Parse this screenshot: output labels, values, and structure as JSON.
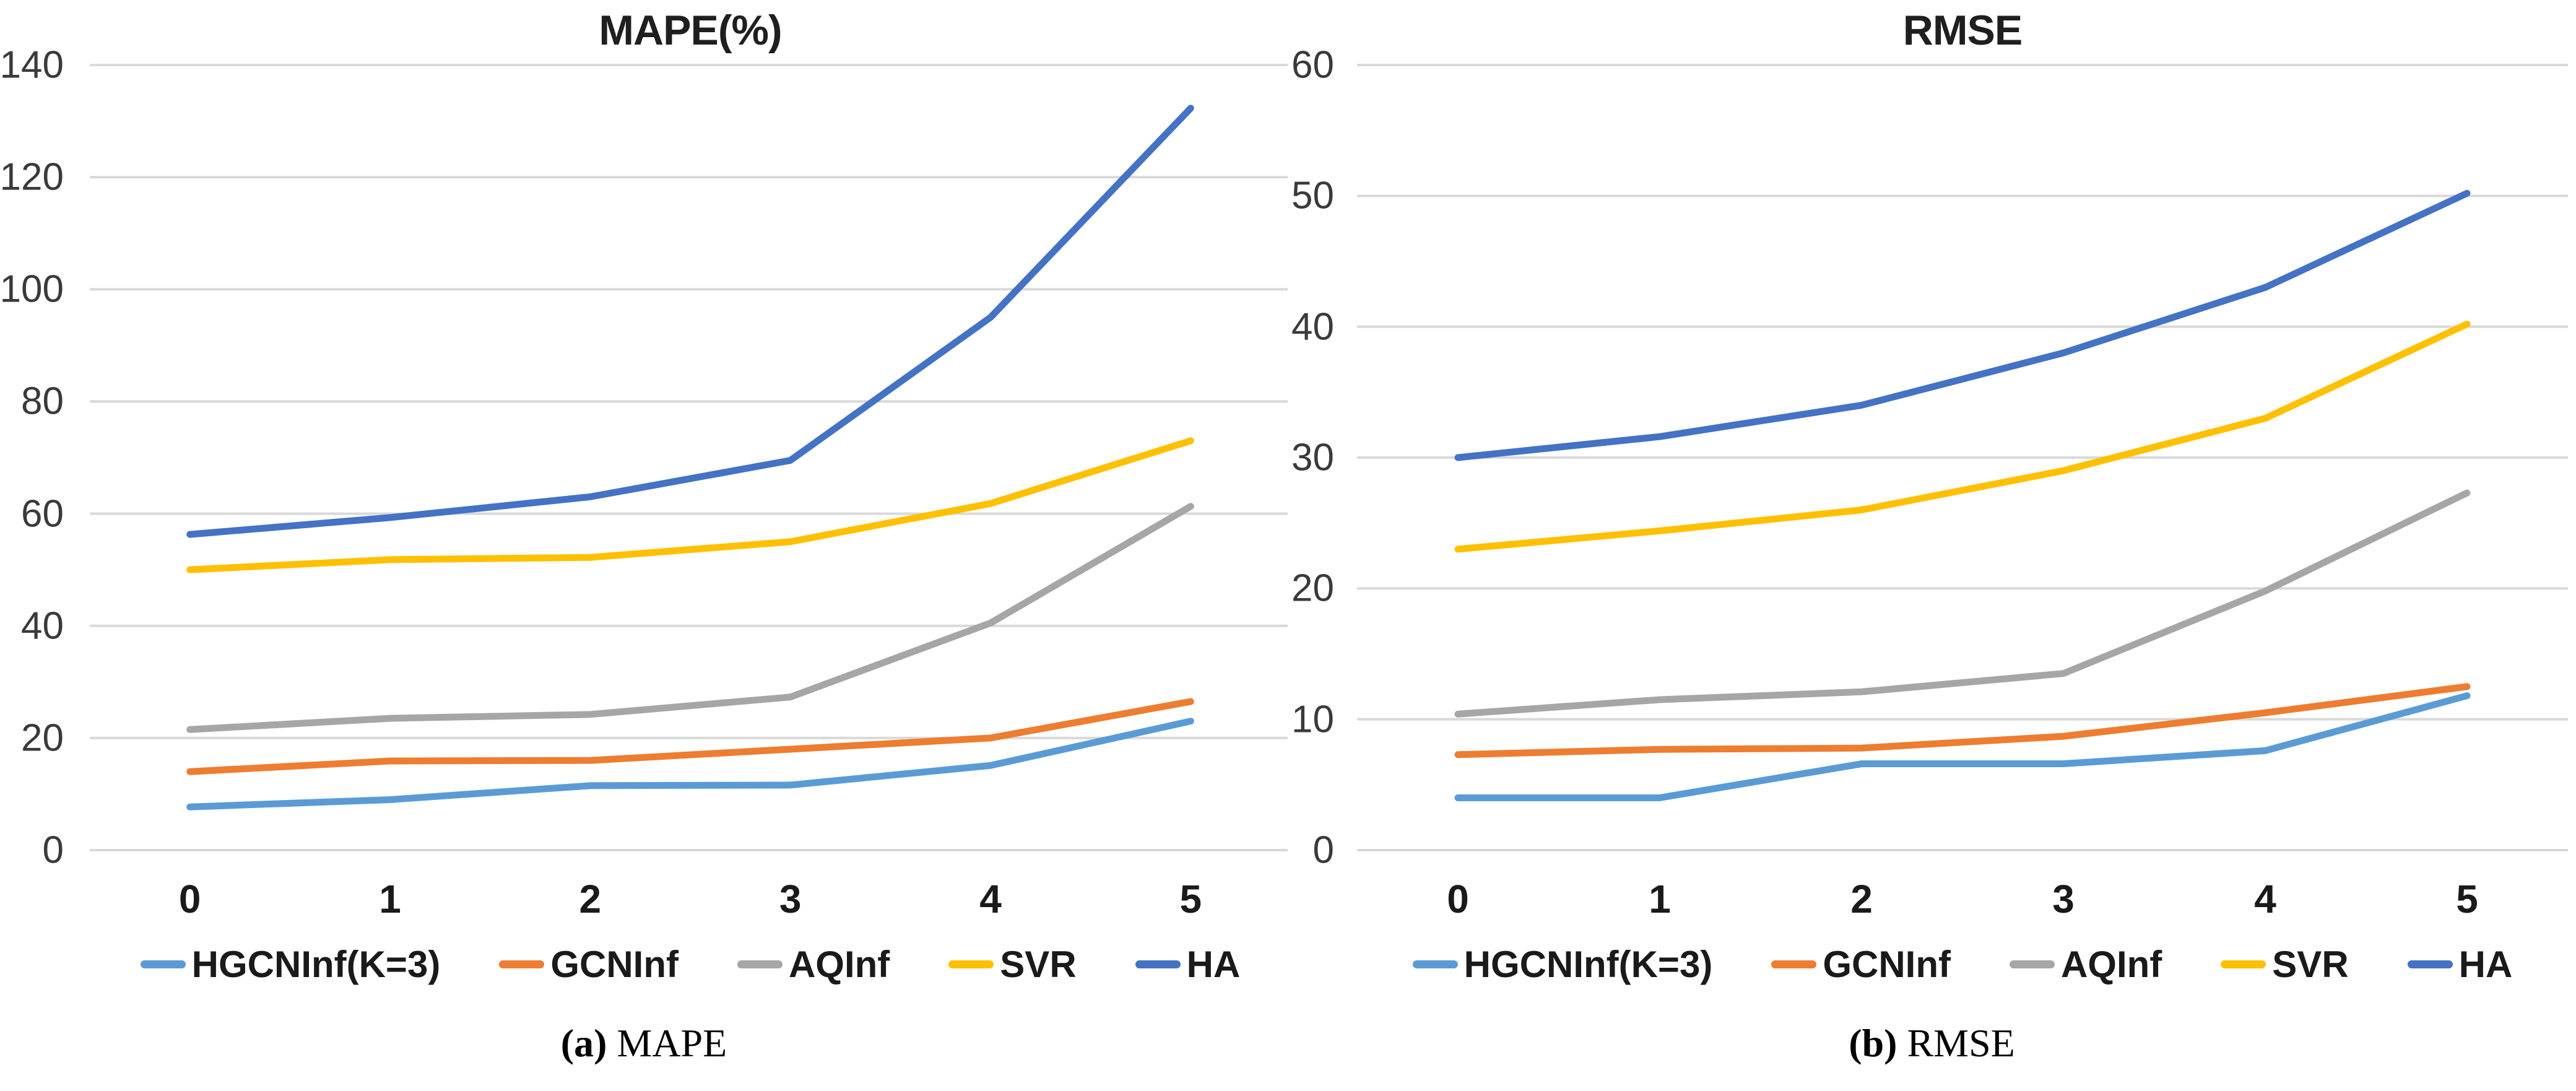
{
  "figure": {
    "background": "#ffffff",
    "grid_color": "#d9d9d9",
    "title_color": "#1f1f1f",
    "tick_label_color": "#3a3a3a"
  },
  "chart_data": [
    {
      "type": "line",
      "title": "MAPE(%)",
      "caption_prefix": "(a)",
      "caption_label": "MAPE",
      "xlabel": "",
      "ylabel": "",
      "x": [
        0,
        1,
        2,
        3,
        4,
        5
      ],
      "ylim": [
        0,
        140
      ],
      "yticks": [
        0,
        20,
        40,
        60,
        80,
        100,
        120,
        140
      ],
      "grid": true,
      "legend_position": "bottom",
      "series": [
        {
          "name": "HGCNInf(K=3)",
          "color": "#5B9BD5",
          "values": [
            7.7,
            9.0,
            11.5,
            11.6,
            15.1,
            23.0
          ]
        },
        {
          "name": "GCNInf",
          "color": "#ED7D31",
          "values": [
            14.0,
            15.9,
            16.0,
            18.0,
            20.0,
            26.5
          ]
        },
        {
          "name": "AQInf",
          "color": "#A6A6A6",
          "values": [
            21.5,
            23.5,
            24.2,
            27.3,
            40.5,
            61.3
          ]
        },
        {
          "name": "SVR",
          "color": "#FFC000",
          "values": [
            50.0,
            51.8,
            52.2,
            55.0,
            61.8,
            73.0
          ]
        },
        {
          "name": "HA",
          "color": "#4472C4",
          "values": [
            56.3,
            59.3,
            63.0,
            69.5,
            95.0,
            132.3
          ]
        }
      ]
    },
    {
      "type": "line",
      "title": "RMSE",
      "caption_prefix": "(b)",
      "caption_label": "RMSE",
      "xlabel": "",
      "ylabel": "",
      "x": [
        0,
        1,
        2,
        3,
        4,
        5
      ],
      "ylim": [
        0,
        60
      ],
      "yticks": [
        0,
        10,
        20,
        30,
        40,
        50,
        60
      ],
      "grid": true,
      "legend_position": "bottom",
      "series": [
        {
          "name": "HGCNInf(K=3)",
          "color": "#5B9BD5",
          "values": [
            4.0,
            4.0,
            6.6,
            6.6,
            7.6,
            11.8
          ]
        },
        {
          "name": "GCNInf",
          "color": "#ED7D31",
          "values": [
            7.3,
            7.7,
            7.8,
            8.7,
            10.5,
            12.5
          ]
        },
        {
          "name": "AQInf",
          "color": "#A6A6A6",
          "values": [
            10.4,
            11.5,
            12.1,
            13.5,
            19.8,
            27.3
          ]
        },
        {
          "name": "SVR",
          "color": "#FFC000",
          "values": [
            23.0,
            24.4,
            26.0,
            29.0,
            33.0,
            40.2
          ]
        },
        {
          "name": "HA",
          "color": "#4472C4",
          "values": [
            30.0,
            31.6,
            34.0,
            38.0,
            43.0,
            50.2
          ]
        }
      ]
    }
  ]
}
